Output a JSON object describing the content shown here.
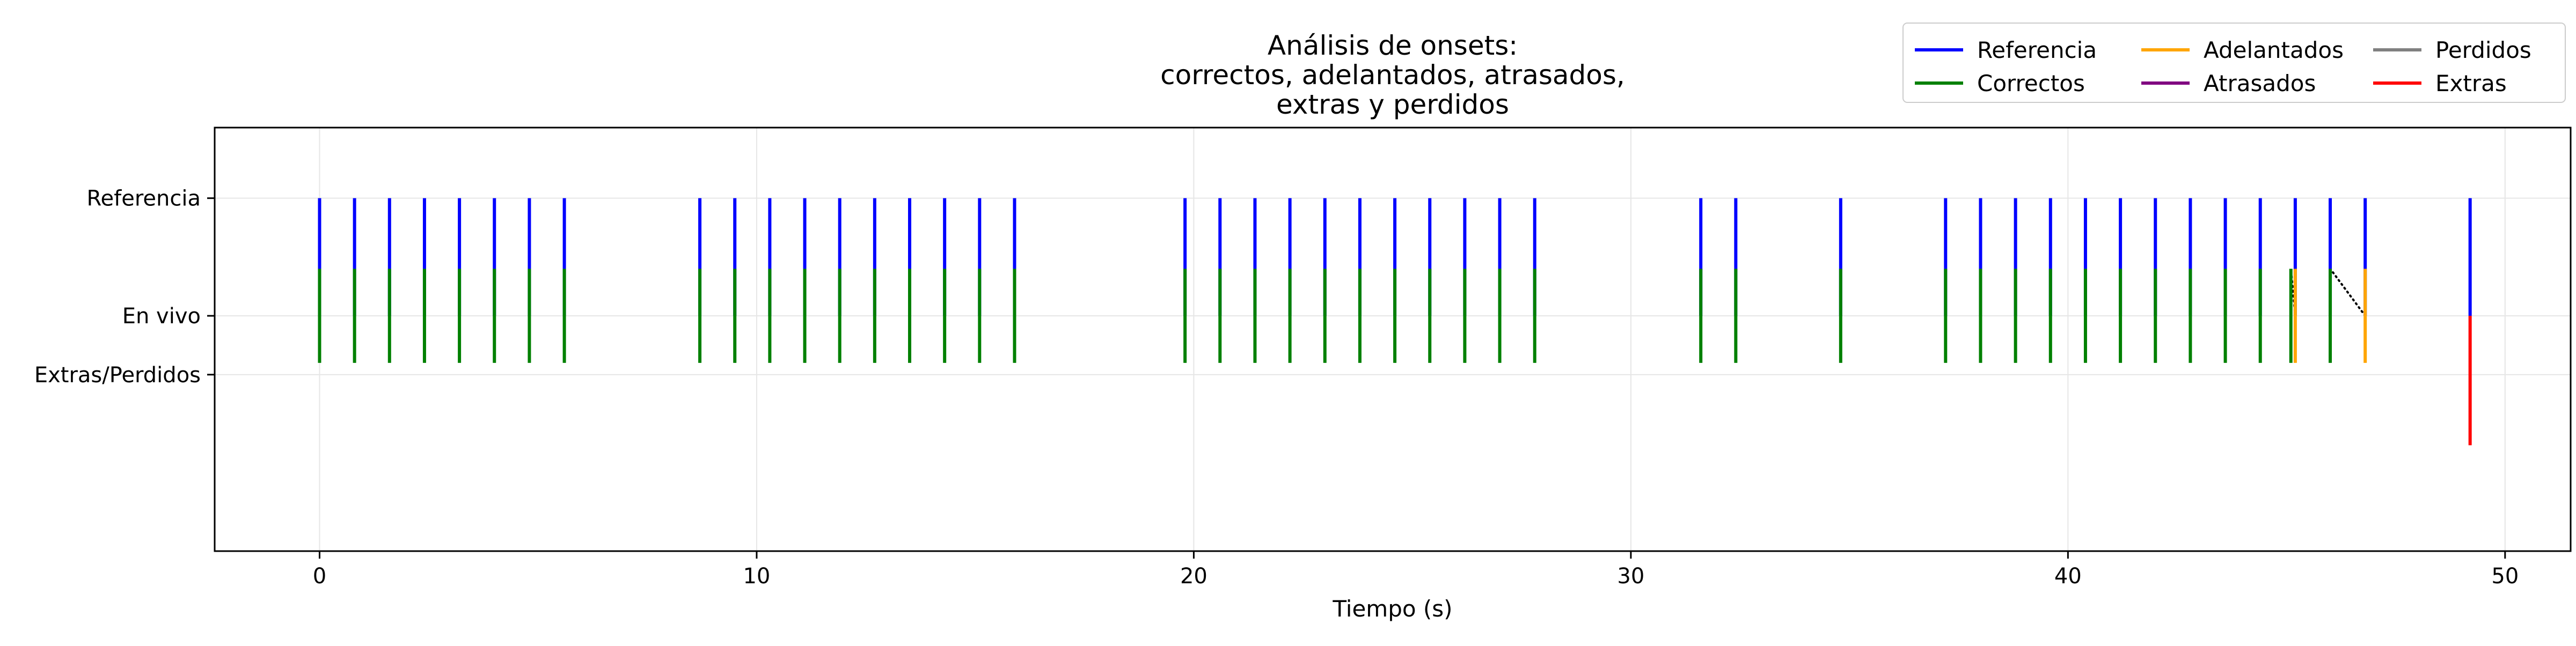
{
  "chart_data": {
    "type": "event-plot",
    "title_lines": [
      "Análisis de onsets:",
      "correctos, adelantados, atrasados,",
      "extras y perdidos"
    ],
    "xlabel": "Tiempo (s)",
    "ylabel": "",
    "xlim": [
      -2.4,
      51.5
    ],
    "xticks": [
      0,
      10,
      20,
      30,
      40,
      50
    ],
    "xtick_labels": [
      "0",
      "10",
      "20",
      "30",
      "40",
      "50"
    ],
    "ylim": [
      -1.0,
      2.6
    ],
    "yticks": [
      2.0,
      1.0,
      0.5
    ],
    "ytick_labels": [
      "Referencia",
      "En vivo",
      "Extras/Perdidos"
    ],
    "grid": true,
    "legend": {
      "position": "top-right",
      "columns": 3,
      "entries": [
        {
          "label": "Referencia",
          "color": "#0000ff"
        },
        {
          "label": "Correctos",
          "color": "#008000"
        },
        {
          "label": "Adelantados",
          "color": "#ffa500"
        },
        {
          "label": "Atrasados",
          "color": "#800080"
        },
        {
          "label": "Perdidos",
          "color": "#808080"
        },
        {
          "label": "Extras",
          "color": "#ff0000"
        }
      ]
    },
    "series": [
      {
        "name": "Referencia",
        "color": "#0000ff",
        "y_range": [
          1.0,
          2.0
        ],
        "x": [
          0.0,
          0.8,
          1.6,
          2.4,
          3.2,
          4.0,
          4.8,
          5.6,
          8.7,
          9.5,
          10.3,
          11.1,
          11.9,
          12.7,
          13.5,
          14.3,
          15.1,
          15.9,
          19.8,
          20.6,
          21.4,
          22.2,
          23.0,
          23.8,
          24.6,
          25.4,
          26.2,
          27.0,
          27.8,
          31.6,
          32.4,
          34.8,
          37.2,
          38.0,
          38.8,
          39.6,
          40.4,
          41.2,
          42.0,
          42.8,
          43.6,
          44.4,
          45.2,
          46.0,
          46.8,
          49.2
        ]
      },
      {
        "name": "Correctos",
        "color": "#008000",
        "y_range": [
          0.6,
          1.4
        ],
        "x": [
          0.0,
          0.8,
          1.6,
          2.4,
          3.2,
          4.0,
          4.8,
          5.6,
          8.7,
          9.5,
          10.3,
          11.1,
          11.9,
          12.7,
          13.5,
          14.3,
          15.1,
          15.9,
          19.8,
          20.6,
          21.4,
          22.2,
          23.0,
          23.8,
          24.6,
          25.4,
          26.2,
          27.0,
          27.8,
          31.6,
          32.4,
          34.8,
          37.2,
          38.0,
          38.8,
          39.6,
          40.4,
          41.2,
          42.0,
          42.8,
          43.6,
          44.4,
          45.1,
          46.0
        ]
      },
      {
        "name": "Adelantados",
        "color": "#ffa500",
        "y_range": [
          0.6,
          1.4
        ],
        "x": [
          45.2,
          46.8
        ]
      },
      {
        "name": "Extras",
        "color": "#ff0000",
        "y_range": [
          -0.1,
          1.0
        ],
        "x": [
          49.2
        ]
      }
    ],
    "match_lines": {
      "color": "#000000",
      "style": "dotted",
      "pairs": [
        [
          0.0,
          0.0
        ],
        [
          0.8,
          0.8
        ],
        [
          1.6,
          1.6
        ],
        [
          2.4,
          2.4
        ],
        [
          3.2,
          3.2
        ],
        [
          4.0,
          4.0
        ],
        [
          4.8,
          4.8
        ],
        [
          5.6,
          5.6
        ],
        [
          8.7,
          8.7
        ],
        [
          9.5,
          9.5
        ],
        [
          10.3,
          10.3
        ],
        [
          11.1,
          11.1
        ],
        [
          11.9,
          11.9
        ],
        [
          12.7,
          12.7
        ],
        [
          13.5,
          13.5
        ],
        [
          14.3,
          14.3
        ],
        [
          15.1,
          15.1
        ],
        [
          15.9,
          15.9
        ],
        [
          19.8,
          19.8
        ],
        [
          20.6,
          20.6
        ],
        [
          21.4,
          21.4
        ],
        [
          22.2,
          22.2
        ],
        [
          23.0,
          23.0
        ],
        [
          23.8,
          23.8
        ],
        [
          24.6,
          24.6
        ],
        [
          25.4,
          25.4
        ],
        [
          26.2,
          26.2
        ],
        [
          27.0,
          27.0
        ],
        [
          27.8,
          27.8
        ],
        [
          31.6,
          31.6
        ],
        [
          32.4,
          32.4
        ],
        [
          34.8,
          34.8
        ],
        [
          37.2,
          37.2
        ],
        [
          38.0,
          38.0
        ],
        [
          38.8,
          38.8
        ],
        [
          39.6,
          39.6
        ],
        [
          40.4,
          40.4
        ],
        [
          41.2,
          41.2
        ],
        [
          42.0,
          42.0
        ],
        [
          42.8,
          42.8
        ],
        [
          43.6,
          43.6
        ],
        [
          44.4,
          44.4
        ],
        [
          45.2,
          45.1
        ],
        [
          46.0,
          46.0
        ],
        [
          46.8,
          46.0
        ]
      ]
    }
  }
}
